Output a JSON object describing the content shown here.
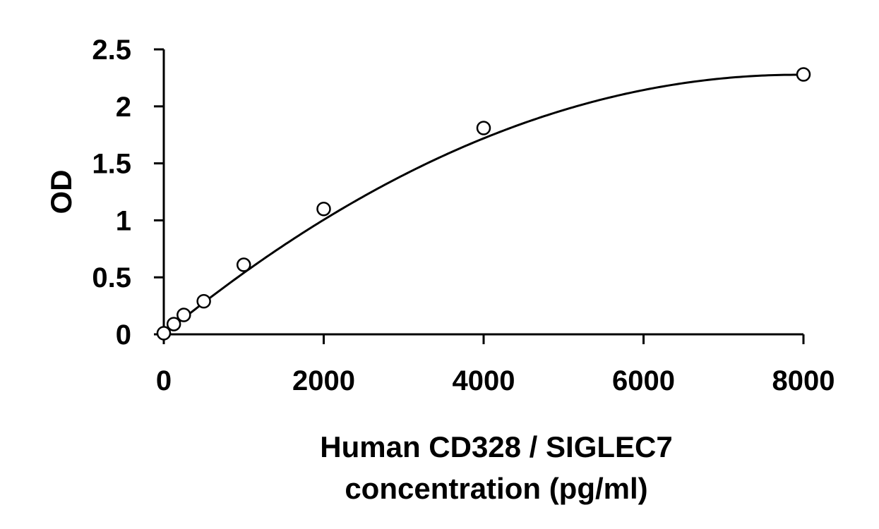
{
  "chart_data": {
    "type": "scatter",
    "title": "",
    "xlabel": "Human CD328 / SIGLEC7\nconcentration (pg/ml)",
    "xlabel_lines": [
      "Human CD328 / SIGLEC7",
      "concentration (pg/ml)"
    ],
    "ylabel": "OD",
    "xlim": [
      0,
      8000
    ],
    "ylim": [
      0,
      2.5
    ],
    "x_ticks": [
      0,
      2000,
      4000,
      6000,
      8000
    ],
    "x_tick_labels": [
      "0",
      "2000",
      "4000",
      "6000",
      "8000"
    ],
    "y_ticks": [
      0,
      0.5,
      1,
      1.5,
      2,
      2.5
    ],
    "y_tick_labels": [
      "0",
      "0.5",
      "1",
      "1.5",
      "2",
      "2.5"
    ],
    "grid": false,
    "legend": "none",
    "series": [
      {
        "marker": "open-circle",
        "x": [
          0,
          125,
          250,
          500,
          1000,
          2000,
          4000,
          8000
        ],
        "y": [
          0.01,
          0.09,
          0.17,
          0.29,
          0.61,
          1.1,
          1.81,
          2.28
        ]
      }
    ],
    "fit_line": {
      "type": "polynomial-2",
      "coefficients": [
        0.0,
        0.000575,
        -3.63e-08
      ]
    },
    "colors": {
      "line": "#000000",
      "marker_stroke": "#000000",
      "marker_fill": "#ffffff",
      "axis": "#000000"
    }
  }
}
